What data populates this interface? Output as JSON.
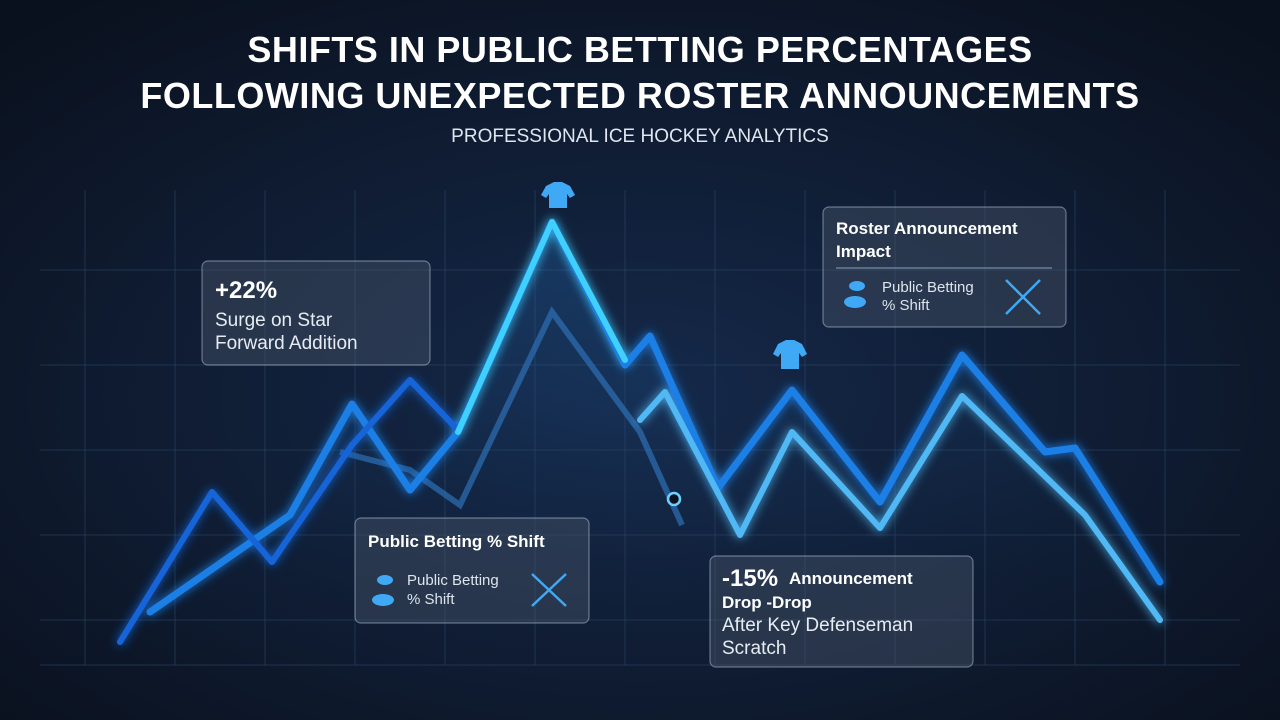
{
  "header": {
    "title_lines": [
      "SHIFTS IN PUBLIC BETTING PERCENTAGES",
      "FOLLOWING UNEXPECTED ROSTER ANNOUNCEMENTS"
    ],
    "subtitle": "PROFESSIONAL ICE HOCKEY ANALYTICS"
  },
  "callouts": [
    {
      "headline": "+22%",
      "lines": [
        "Surge on Star",
        "Forward Addition"
      ]
    },
    {
      "title_lines": [
        "Roster Announcement",
        "Impact"
      ],
      "legend_lines": [
        "Public Betting",
        "% Shift"
      ]
    },
    {
      "title": "Public Betting % Shift",
      "legend_lines": [
        "Public Betting",
        "% Shift"
      ]
    },
    {
      "headline": "-15%",
      "headline_suffix": "Announcement",
      "lines": [
        "Drop -Drop",
        "After Key Defenseman",
        "Scratch"
      ]
    }
  ]
}
